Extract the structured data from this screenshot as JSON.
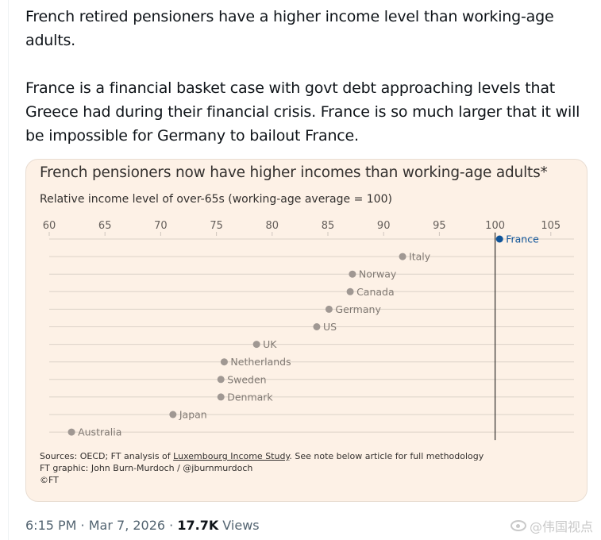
{
  "tweet": {
    "paragraph1": "French retired pensioners have a higher income level than working-age adults.",
    "paragraph2": "France is a financial basket case with govt debt approaching levels that Greece had during their financial crisis. France is so much larger that it will be impossible for Germany to bailout France.",
    "time": "6:15 PM",
    "sep1": " · ",
    "date": "Mar 7, 2026",
    "sep2": " · ",
    "views_count": "17.7K",
    "views_label": " Views"
  },
  "watermark": {
    "icon": "weibo-icon",
    "text": "@伟国视点"
  },
  "chart_data": {
    "type": "scatter",
    "title": "French pensioners now have higher incomes than working-age adults*",
    "subtitle": "Relative income level of over-65s (working-age average = 100)",
    "xlim": [
      60,
      107
    ],
    "xticks": [
      60,
      65,
      70,
      75,
      80,
      85,
      90,
      95,
      100,
      105
    ],
    "reference_line": 100,
    "grid": "horizontal",
    "highlight_color": "#0f5499",
    "point_color": "#a09893",
    "categories": [
      "France",
      "Italy",
      "Norway",
      "Canada",
      "Germany",
      "US",
      "UK",
      "Netherlands",
      "Sweden",
      "Denmark",
      "Japan",
      "Australia"
    ],
    "values": [
      100.4,
      91.7,
      87.2,
      87.0,
      85.1,
      84.0,
      78.6,
      75.7,
      75.4,
      75.4,
      71.1,
      62.0
    ],
    "highlight": "France"
  },
  "footer": {
    "sources_prefix": "Sources: OECD; FT analysis of ",
    "sources_link": "Luxembourg Income Study",
    "sources_suffix": ". See note below article for full methodology",
    "graphic": "FT graphic: John Burn-Murdoch / @jburnmurdoch",
    "copyright": "©FT"
  }
}
